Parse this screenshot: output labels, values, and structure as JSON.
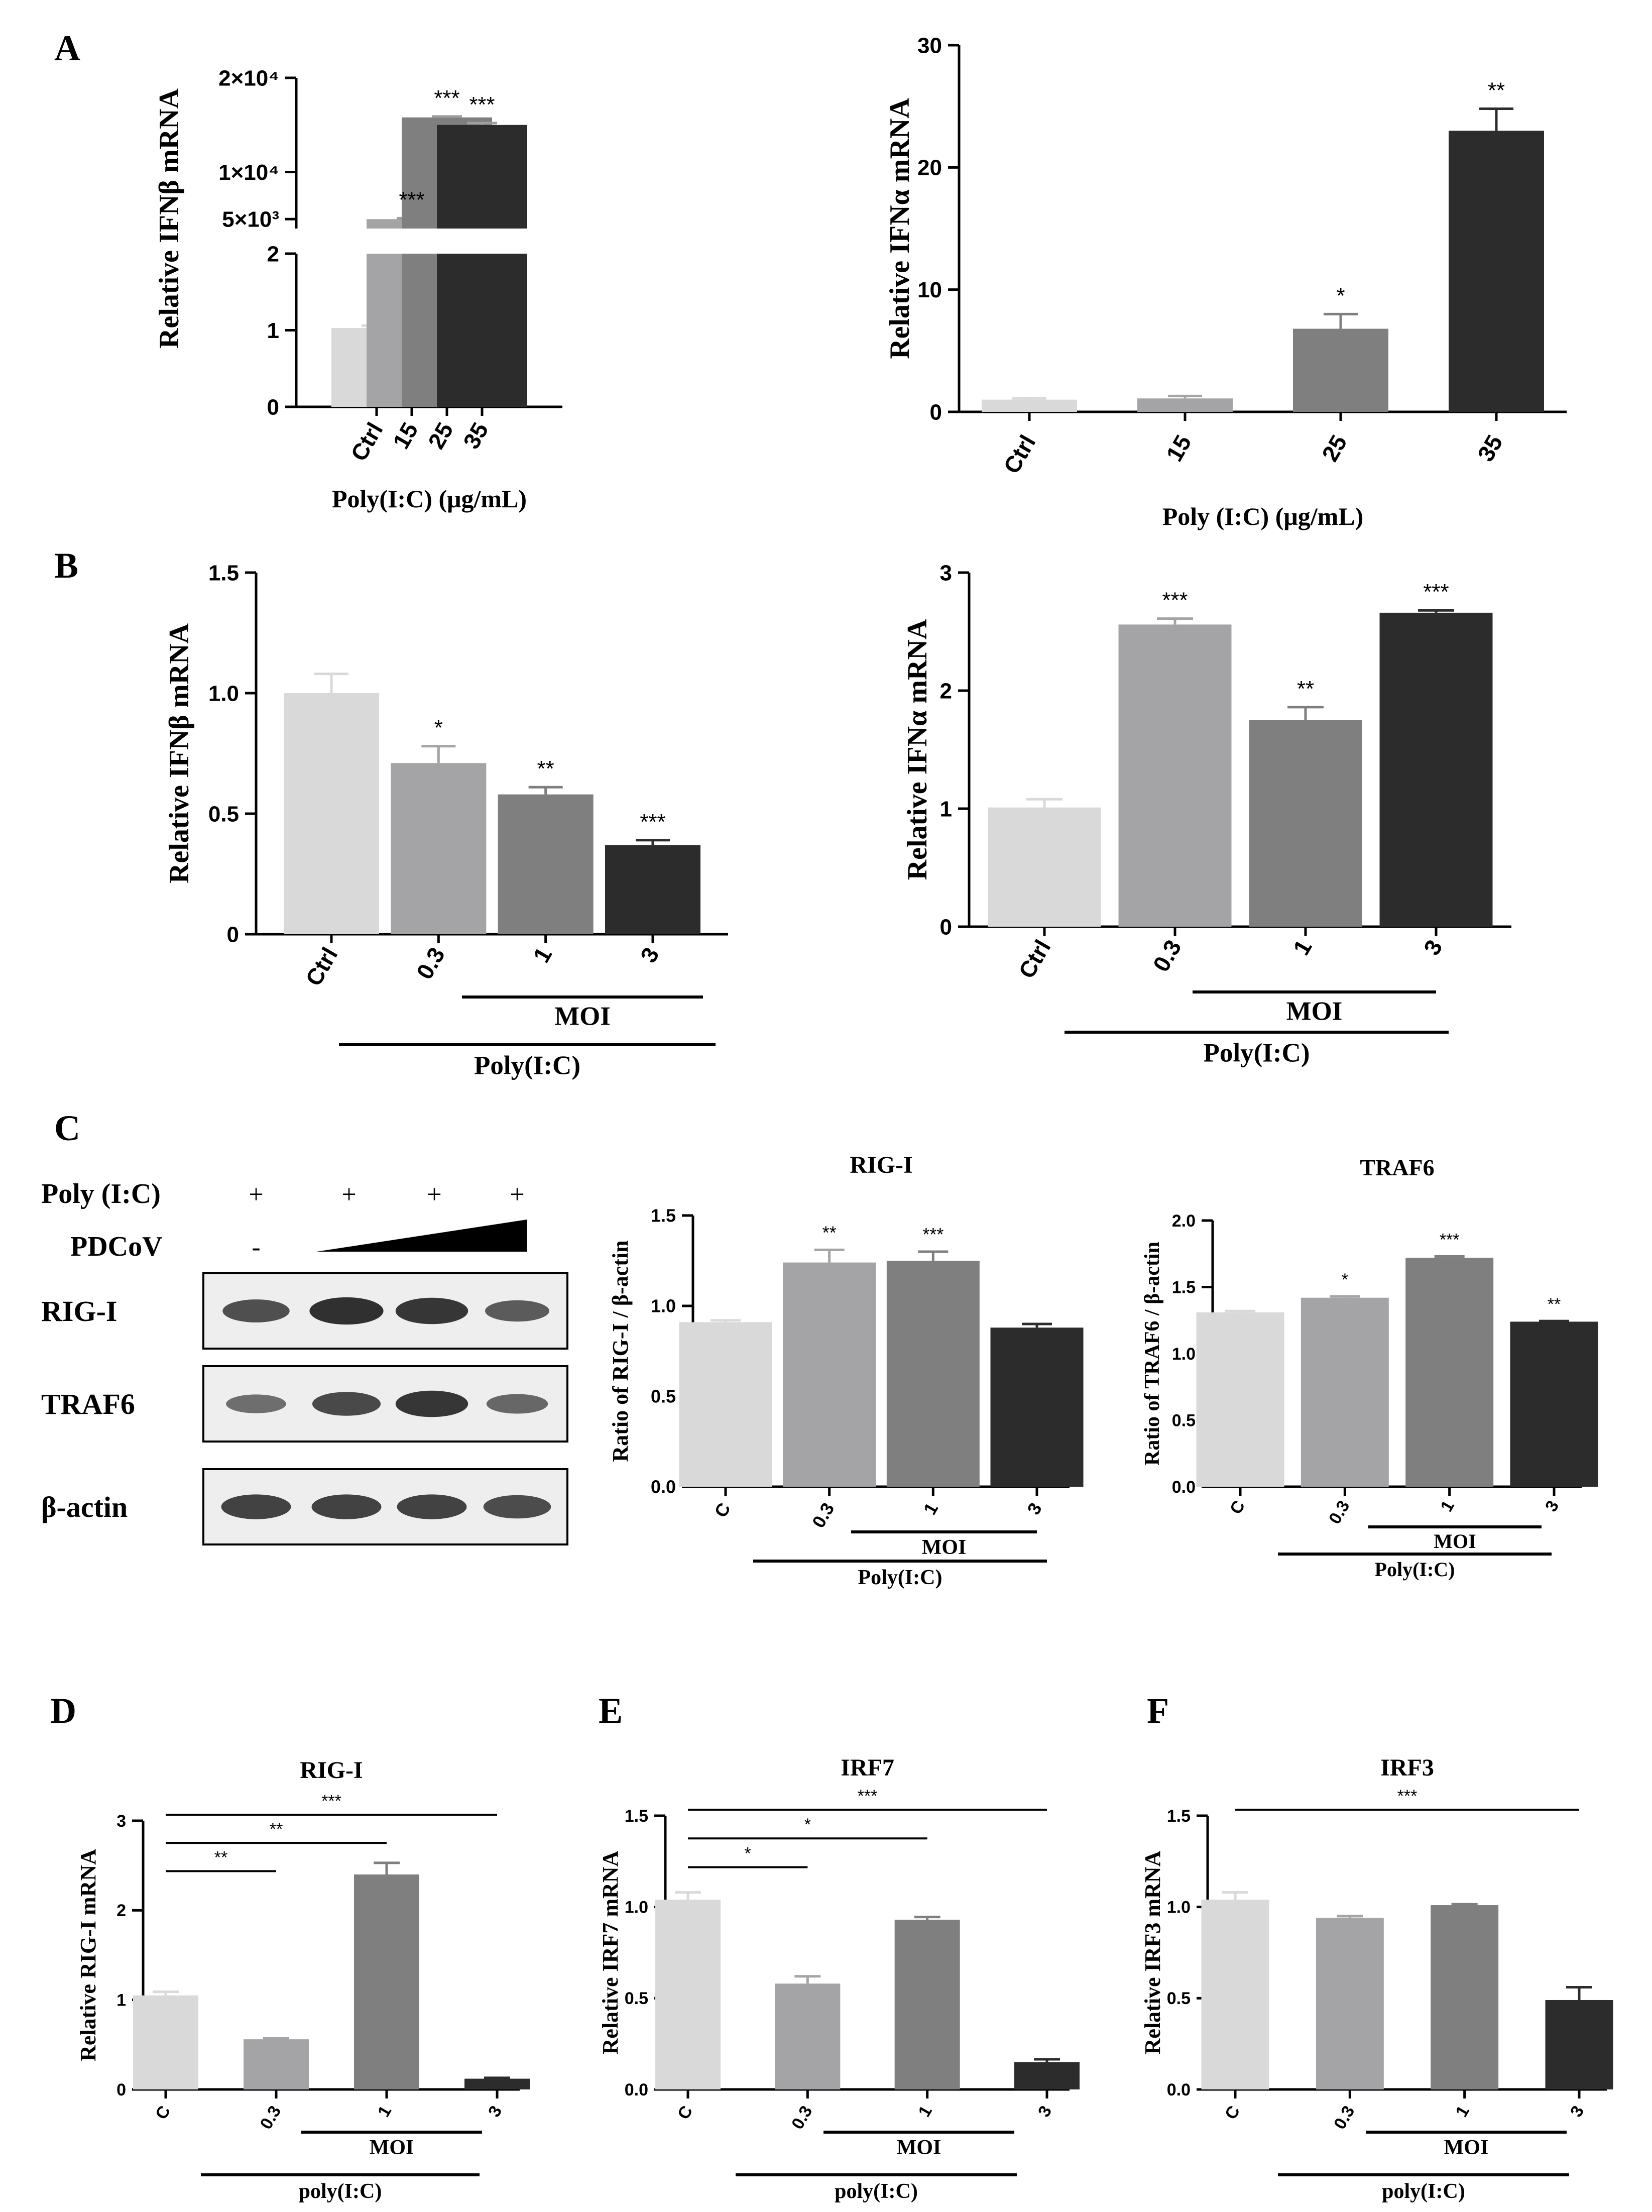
{
  "colors": {
    "bar_shades": [
      "#d9d9d9",
      "#a4a4a7",
      "#7f7f7f",
      "#2c2c2c"
    ],
    "axis": "#000000",
    "blot_background": "#eeeeee",
    "blot_band": "#1f1f1f"
  },
  "panel_labels": {
    "A": "A",
    "B": "B",
    "C": "C",
    "D": "D",
    "E": "E",
    "F": "F"
  },
  "western_blot": {
    "treatment_rows": [
      {
        "label": "Poly (I:C)",
        "marks": [
          "+",
          "+",
          "+",
          "+"
        ]
      },
      {
        "label": "PDCoV",
        "marks": [
          "-"
        ],
        "gradient": "increasing wedge over lanes 2-4"
      }
    ],
    "rows": [
      {
        "label": "RIG-I",
        "intensity": [
          0.7,
          0.95,
          0.9,
          0.6
        ]
      },
      {
        "label": "TRAF6",
        "intensity": [
          0.45,
          0.75,
          0.9,
          0.5
        ]
      },
      {
        "label": "β-actin",
        "intensity": [
          0.8,
          0.8,
          0.8,
          0.72
        ]
      }
    ]
  },
  "chart_data": [
    {
      "id": "A-left",
      "type": "bar",
      "categories": [
        "Ctrl",
        "15",
        "25",
        "35"
      ],
      "values": [
        1.03,
        5000,
        15800,
        15000
      ],
      "errors": [
        0.03,
        100,
        100,
        200
      ],
      "significance": [
        "",
        "***",
        "***",
        "***"
      ],
      "xlabel": "Poly(I:C) (μg/mL)",
      "ylabel": "Relative IFNβ mRNA",
      "axis_break": true,
      "lower_segment": {
        "ylim": [
          0,
          2
        ],
        "ticks": [
          "0",
          "1",
          "2"
        ]
      },
      "upper_segment": {
        "ylim": [
          4000,
          20000
        ],
        "ticks": [
          "5×10³",
          "1×10⁴",
          "2×10⁴"
        ]
      }
    },
    {
      "id": "A-right",
      "type": "bar",
      "categories": [
        "Ctrl",
        "15",
        "25",
        "35"
      ],
      "values": [
        1.0,
        1.1,
        6.8,
        23
      ],
      "errors": [
        0.1,
        0.2,
        1.2,
        1.8
      ],
      "significance": [
        "",
        "",
        "*",
        "**"
      ],
      "xlabel": "Poly (I:C) (μg/mL)",
      "ylabel": "Relative IFNα mRNA",
      "ylim": [
        0,
        30
      ],
      "ticks": [
        "0",
        "10",
        "20",
        "30"
      ]
    },
    {
      "id": "B-left",
      "type": "bar",
      "categories": [
        "Ctrl",
        "0.3",
        "1",
        "3"
      ],
      "values": [
        1.0,
        0.71,
        0.58,
        0.37
      ],
      "errors": [
        0.08,
        0.07,
        0.03,
        0.02
      ],
      "significance": [
        "",
        "*",
        "**",
        "***"
      ],
      "ylabel": "Relative IFNβ mRNA",
      "ylim": [
        0,
        1.5
      ],
      "ticks": [
        "0",
        "0.5",
        "1.0",
        "1.5"
      ],
      "group_labels": [
        "MOI",
        "Poly(I:C)"
      ]
    },
    {
      "id": "B-right",
      "type": "bar",
      "categories": [
        "Ctrl",
        "0.3",
        "1",
        "3"
      ],
      "values": [
        1.01,
        2.56,
        1.75,
        2.66
      ],
      "errors": [
        0.07,
        0.05,
        0.11,
        0.02
      ],
      "significance": [
        "",
        "***",
        "**",
        "***"
      ],
      "ylabel": "Relative IFNα mRNA",
      "ylim": [
        0,
        3
      ],
      "ticks": [
        "0",
        "1",
        "2",
        "3"
      ],
      "group_labels": [
        "MOI",
        "Poly(I:C)"
      ]
    },
    {
      "id": "C-rig",
      "type": "bar",
      "title": "RIG-I",
      "categories": [
        "C",
        "0.3",
        "1",
        "3"
      ],
      "values": [
        0.91,
        1.24,
        1.25,
        0.88
      ],
      "errors": [
        0.01,
        0.07,
        0.05,
        0.02
      ],
      "significance": [
        "",
        "**",
        "***",
        ""
      ],
      "ylabel": "Ratio of RIG-I / β-actin",
      "ylim": [
        0,
        1.5
      ],
      "ticks": [
        "0.0",
        "0.5",
        "1.0",
        "1.5"
      ],
      "group_labels": [
        "MOI",
        "Poly(I:C)"
      ]
    },
    {
      "id": "C-traf",
      "type": "bar",
      "title": "TRAF6",
      "categories": [
        "C",
        "0.3",
        "1",
        "3"
      ],
      "values": [
        1.31,
        1.42,
        1.72,
        1.24
      ],
      "errors": [
        0.01,
        0.01,
        0.01,
        0.005
      ],
      "significance": [
        "",
        "*",
        "***",
        "**"
      ],
      "ylabel": "Ratio of TRAF6 / β-actin",
      "ylim": [
        0,
        2.0
      ],
      "ticks": [
        "0.0",
        "0.5",
        "1.0",
        "1.5",
        "2.0"
      ],
      "group_labels": [
        "MOI",
        "Poly(I:C)"
      ]
    },
    {
      "id": "D",
      "type": "bar",
      "title": "RIG-I",
      "categories": [
        "C",
        "0.3",
        "1",
        "3"
      ],
      "values": [
        1.05,
        0.56,
        2.4,
        0.12
      ],
      "errors": [
        0.04,
        0.01,
        0.13,
        0.01
      ],
      "significance": [],
      "brackets": [
        {
          "from": 0,
          "to": 3,
          "label": "***"
        },
        {
          "from": 0,
          "to": 2,
          "label": "**"
        },
        {
          "from": 0,
          "to": 1,
          "label": "**"
        }
      ],
      "ylabel": "Relative RIG-I mRNA",
      "ylim": [
        0,
        3
      ],
      "ticks": [
        "0",
        "1",
        "2",
        "3"
      ],
      "group_labels": [
        "MOI",
        "poly(I:C)"
      ]
    },
    {
      "id": "E",
      "type": "bar",
      "title": "IRF7",
      "categories": [
        "C",
        "0.3",
        "1",
        "3"
      ],
      "values": [
        1.04,
        0.58,
        0.93,
        0.15
      ],
      "errors": [
        0.04,
        0.04,
        0.015,
        0.015
      ],
      "significance": [],
      "brackets": [
        {
          "from": 0,
          "to": 3,
          "label": "***"
        },
        {
          "from": 0,
          "to": 2,
          "label": "*"
        },
        {
          "from": 0,
          "to": 1,
          "label": "*"
        }
      ],
      "ylabel": "Relative IRF7 mRNA",
      "ylim": [
        0,
        1.5
      ],
      "ticks": [
        "0.0",
        "0.5",
        "1.0",
        "1.5"
      ],
      "group_labels": [
        "MOI",
        "poly(I:C)"
      ]
    },
    {
      "id": "F",
      "type": "bar",
      "title": "IRF3",
      "categories": [
        "C",
        "0.3",
        "1",
        "3"
      ],
      "values": [
        1.04,
        0.94,
        1.01,
        0.49
      ],
      "errors": [
        0.04,
        0.01,
        0.005,
        0.07
      ],
      "significance": [],
      "brackets": [
        {
          "from": 0,
          "to": 3,
          "label": "***"
        }
      ],
      "ylabel": "Relative IRF3 mRNA",
      "ylim": [
        0,
        1.5
      ],
      "ticks": [
        "0.0",
        "0.5",
        "1.0",
        "1.5"
      ],
      "group_labels": [
        "MOI",
        "poly(I:C)"
      ]
    }
  ]
}
